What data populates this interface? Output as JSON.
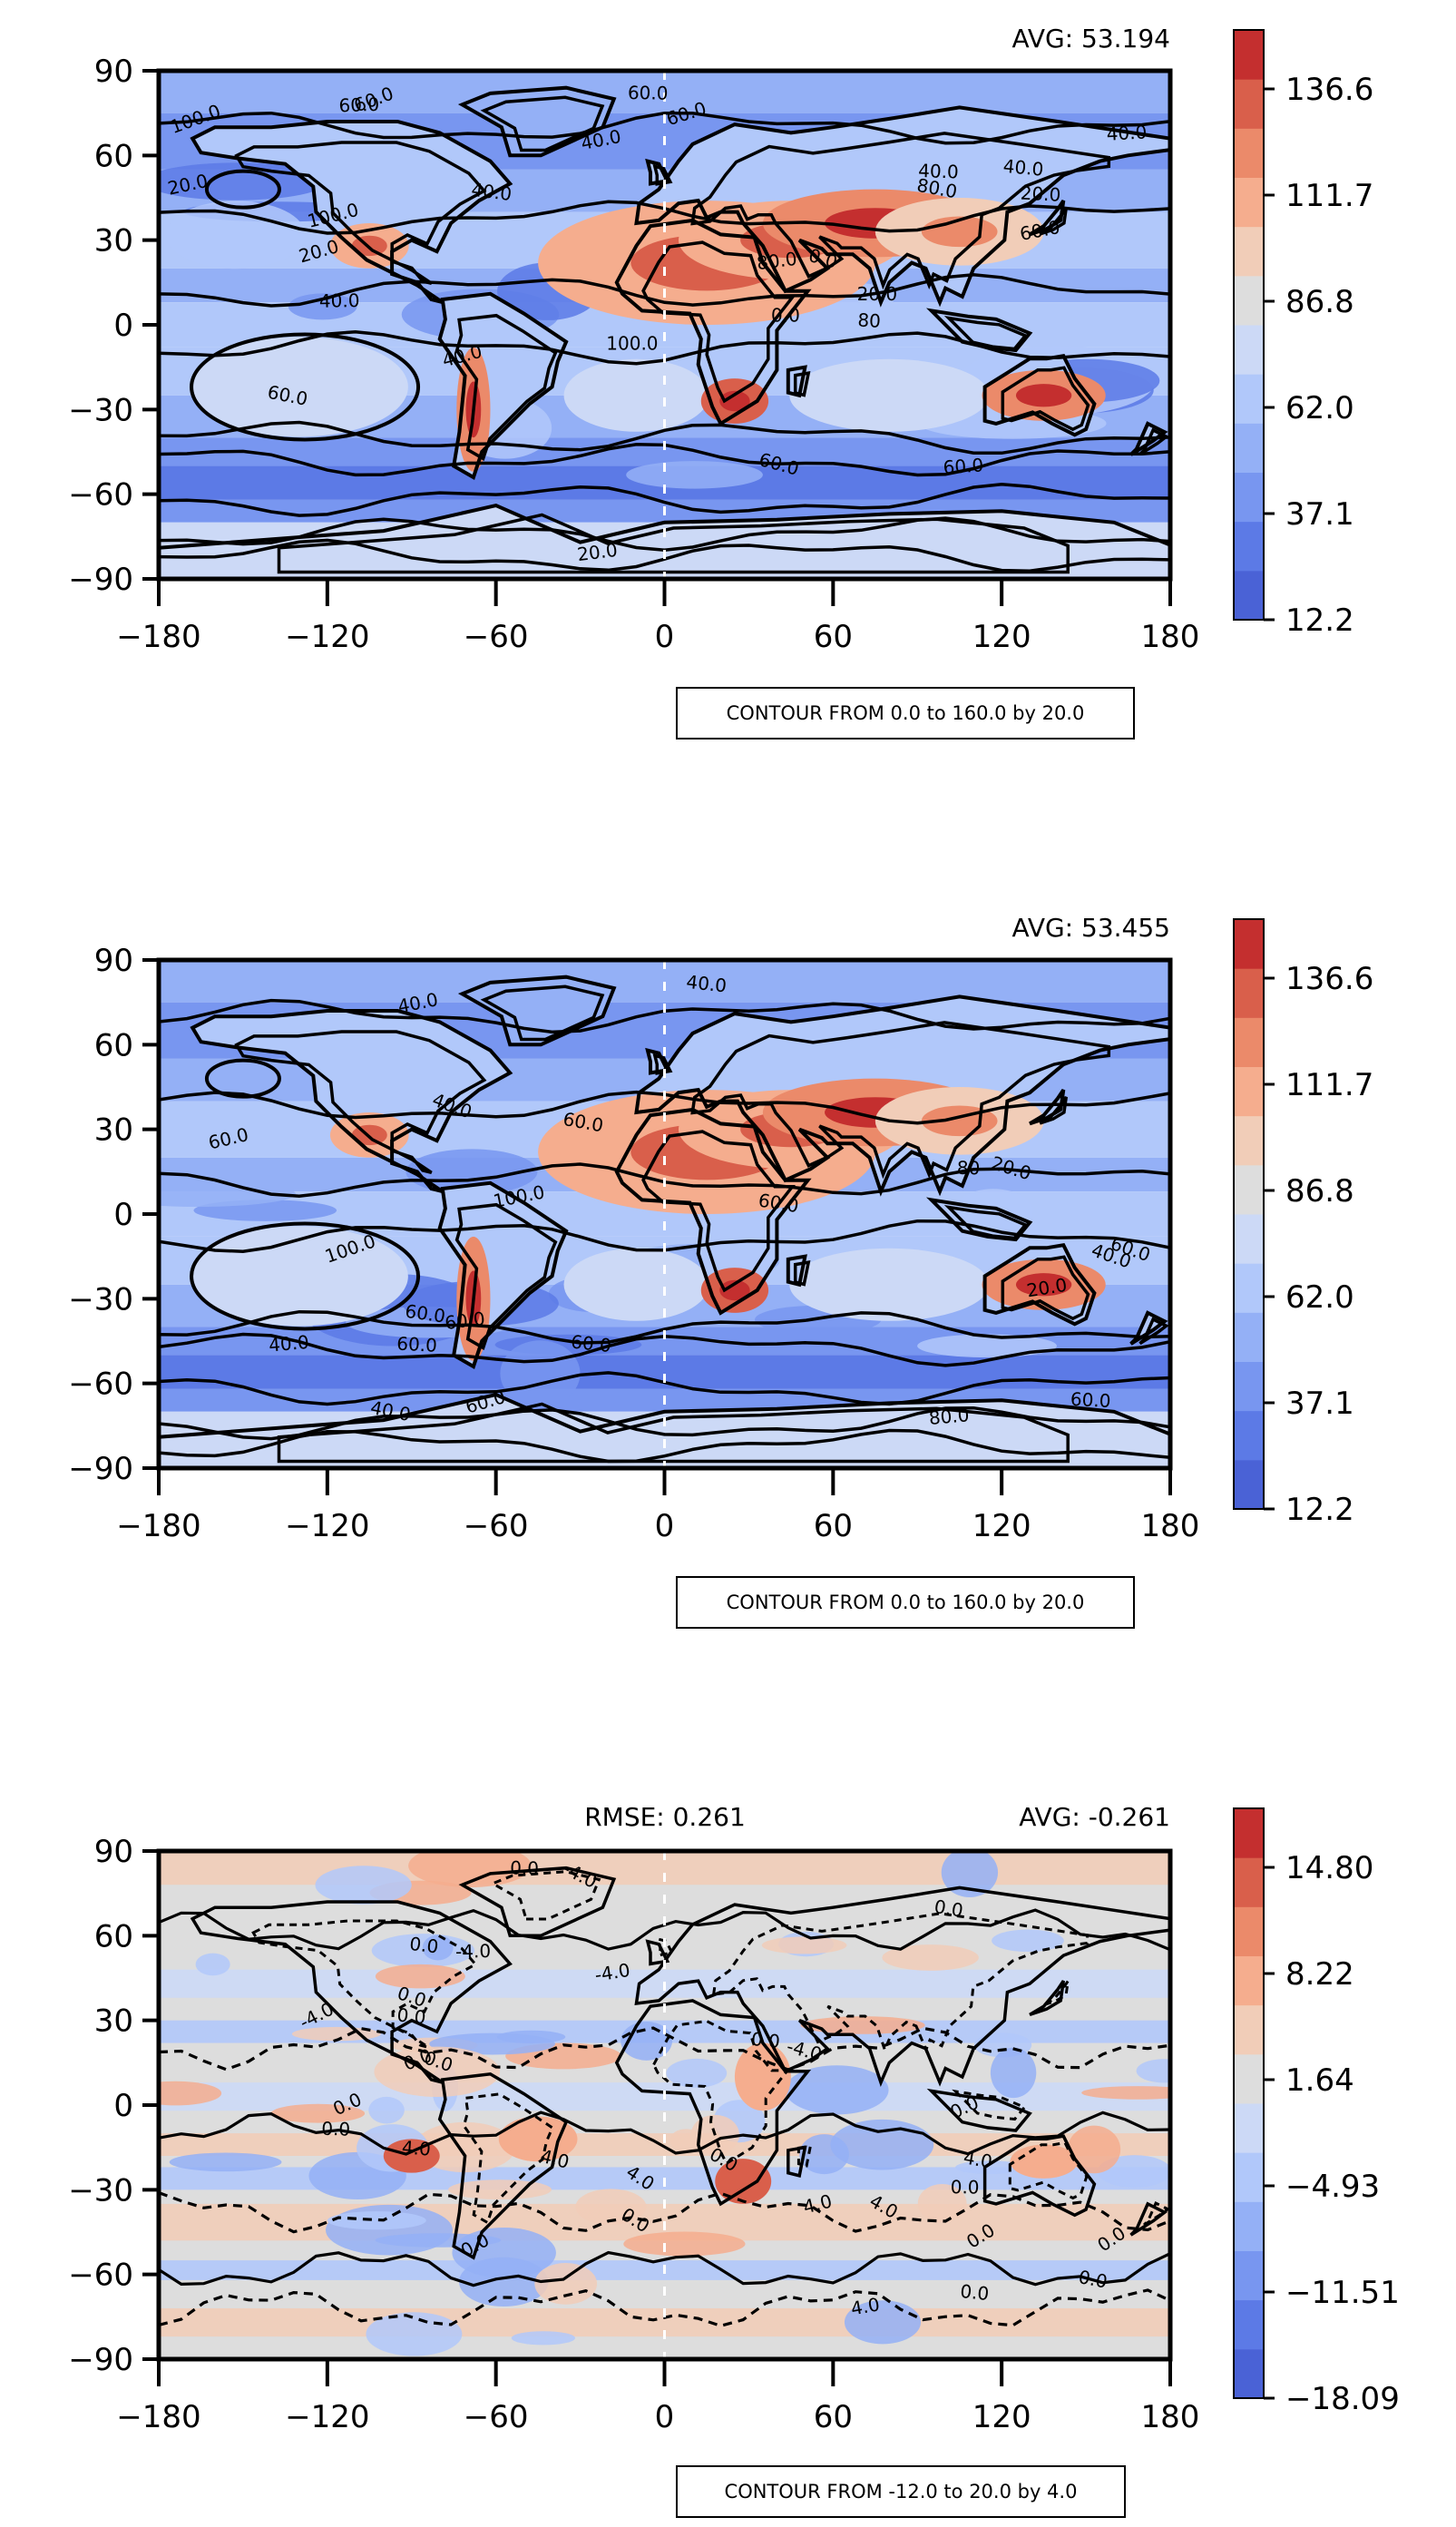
{
  "chart_data": [
    {
      "type": "heatmap",
      "subtype": "filled-contour map with contour lines",
      "title": "",
      "avg_label": "AVG: 53.194",
      "rmse_label": "",
      "contour_note": "CONTOUR FROM 0.0 to 160.0 by 20.0",
      "xlim": [
        -180,
        180
      ],
      "ylim": [
        -90,
        90
      ],
      "xticks": [
        "−180",
        "−120",
        "−60",
        "0",
        "60",
        "120",
        "180"
      ],
      "yticks": [
        "90",
        "60",
        "30",
        "0",
        "−30",
        "−60",
        "−90"
      ],
      "colorbar": {
        "ticks": [
          "136.6",
          "111.7",
          "86.8",
          "62.0",
          "37.1",
          "12.2"
        ],
        "levels": 11,
        "range": [
          12.2,
          149.0
        ],
        "colormap": "coolwarm"
      },
      "contour_labels": [
        "40.0",
        "40.0",
        "0.0",
        "60.0",
        "80.0",
        "100.0",
        "60.0",
        "40.0",
        "80",
        "100.0",
        "60.0",
        "60.0",
        "60.0",
        "40.0",
        "40.0",
        "20.0",
        "20.0",
        "20.0",
        "20.0",
        "40.0",
        "40.0",
        "60.0",
        "60.0",
        "60.0",
        "0.0",
        "20.0",
        "100.0",
        "80.0"
      ]
    },
    {
      "type": "heatmap",
      "subtype": "filled-contour map with contour lines",
      "title": "",
      "avg_label": "AVG: 53.455",
      "rmse_label": "",
      "contour_note": "CONTOUR FROM 0.0 to 160.0 by 20.0",
      "xlim": [
        -180,
        180
      ],
      "ylim": [
        -90,
        90
      ],
      "xticks": [
        "−180",
        "−120",
        "−60",
        "0",
        "60",
        "120",
        "180"
      ],
      "yticks": [
        "90",
        "60",
        "30",
        "0",
        "−30",
        "−60",
        "−90"
      ],
      "colorbar": {
        "ticks": [
          "136.6",
          "111.7",
          "86.8",
          "62.0",
          "37.1",
          "12.2"
        ],
        "levels": 11,
        "range": [
          12.2,
          149.0
        ],
        "colormap": "coolwarm"
      },
      "contour_labels": [
        "40.0",
        "40.0",
        "20.0",
        "20.0",
        "60.0",
        "60.0",
        "60.0",
        "100.0",
        "80",
        "100.0",
        "60.0",
        "60.0",
        "40.0",
        "40.0",
        "40.0",
        "60.0",
        "40.0",
        "60.0",
        "60.0",
        "60.0",
        "60.0",
        "80.0"
      ]
    },
    {
      "type": "heatmap",
      "subtype": "filled-contour map with contour lines (difference)",
      "title": "",
      "avg_label": "AVG: -0.261",
      "rmse_label": "RMSE: 0.261",
      "contour_note": "CONTOUR FROM -12.0 to 20.0 by 4.0",
      "xlim": [
        -180,
        180
      ],
      "ylim": [
        -90,
        90
      ],
      "xticks": [
        "−180",
        "−120",
        "−60",
        "0",
        "60",
        "120",
        "180"
      ],
      "yticks": [
        "90",
        "60",
        "30",
        "0",
        "−30",
        "−60",
        "−90"
      ],
      "colorbar": {
        "ticks": [
          "14.80",
          "8.22",
          "1.64",
          "−4.93",
          "−11.51",
          "−18.09"
        ],
        "levels": 11,
        "range": [
          -18.09,
          18.09
        ],
        "colormap": "coolwarm"
      },
      "contour_labels": [
        "0.0",
        "4.0",
        "4.0",
        "4.0",
        "0.0",
        "0.0",
        "4.0",
        "0.0",
        "-4.0",
        "0.0",
        "0.0",
        "-4.0",
        "0.0",
        "0.0",
        "4.0",
        "0.0",
        "-4.0",
        "0.0",
        "0.0",
        "4.0",
        "-4.0",
        "0.0",
        "0.0",
        "-4.0",
        "0.0",
        "4.0",
        "0.0",
        "0.0",
        "0.0",
        "0.0",
        "0.0"
      ]
    }
  ]
}
